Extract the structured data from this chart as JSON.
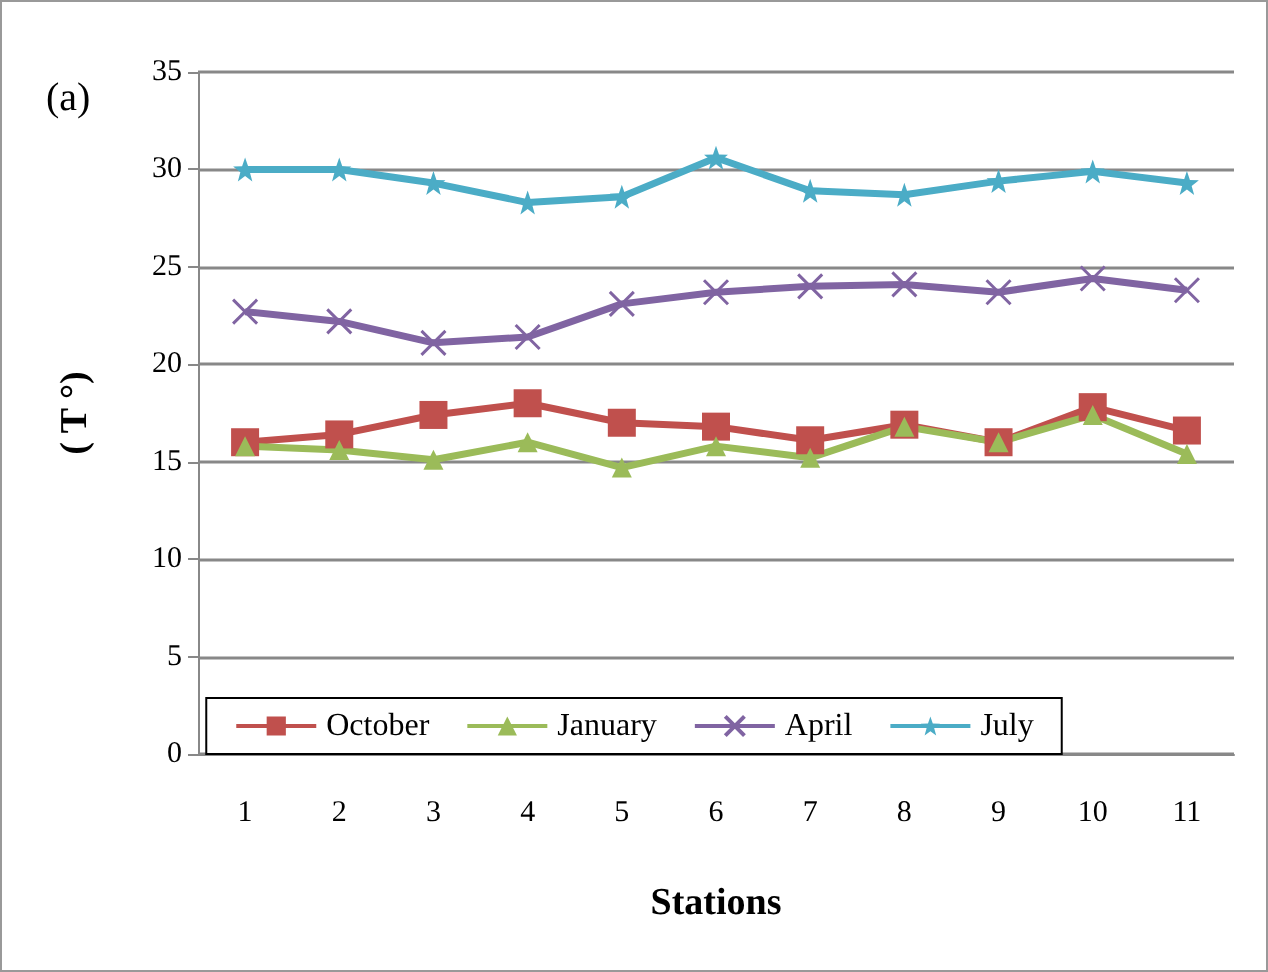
{
  "chart_data": {
    "type": "line",
    "xlabel": "Stations",
    "ylabel": "( T °)",
    "annotations": [
      "(a)"
    ],
    "categories": [
      "1",
      "2",
      "3",
      "4",
      "5",
      "6",
      "7",
      "8",
      "9",
      "10",
      "11"
    ],
    "ylim": [
      0,
      35
    ],
    "yticks": [
      0,
      5,
      10,
      15,
      20,
      25,
      30,
      35
    ],
    "grid": "y",
    "legend": "bottom",
    "series": [
      {
        "name": "October",
        "color": "#c0504d",
        "marker": "square",
        "values": [
          16,
          16.4,
          17.4,
          18,
          17,
          16.8,
          16.1,
          16.9,
          16,
          17.8,
          16.6
        ]
      },
      {
        "name": "January",
        "color": "#9bbb59",
        "marker": "triangle",
        "values": [
          15.8,
          15.6,
          15.1,
          16,
          14.7,
          15.8,
          15.2,
          16.8,
          16,
          17.4,
          15.4
        ]
      },
      {
        "name": "April",
        "color": "#8064a2",
        "marker": "cross",
        "values": [
          22.7,
          22.2,
          21.1,
          21.4,
          23.1,
          23.7,
          24,
          24.1,
          23.7,
          24.4,
          23.8
        ]
      },
      {
        "name": "July",
        "color": "#4bacc6",
        "marker": "star",
        "values": [
          30,
          30,
          29.3,
          28.3,
          28.6,
          30.6,
          28.9,
          28.7,
          29.4,
          29.9,
          29.3
        ]
      }
    ]
  }
}
